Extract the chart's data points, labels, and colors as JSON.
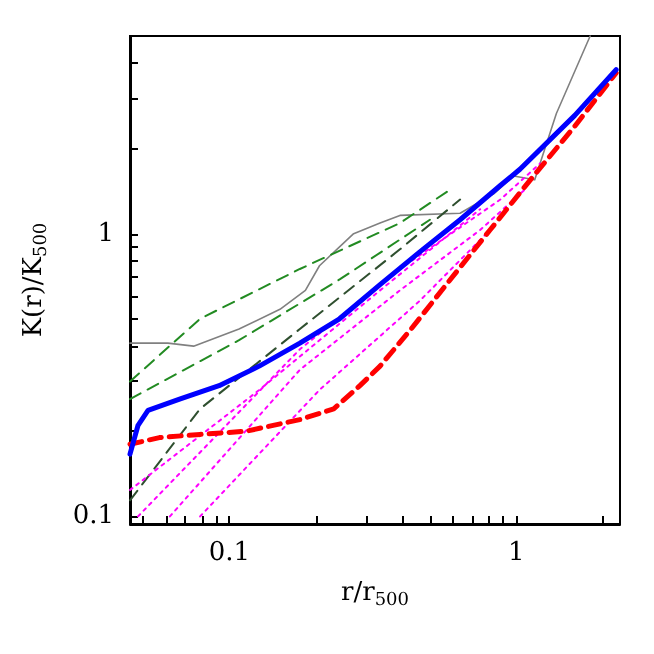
{
  "chart_data": {
    "type": "line",
    "xlabel": "r/r$_{500}$",
    "ylabel": "K(r)/K$_{500}$",
    "log": "xy",
    "grid": false,
    "marker": "none",
    "xlim": [
      0.045,
      2.3
    ],
    "ylim": [
      0.094,
      5
    ],
    "xticks": [
      {
        "value": 0.05,
        "label": null
      },
      {
        "value": 0.06,
        "label": null
      },
      {
        "value": 0.07,
        "label": null
      },
      {
        "value": 0.08,
        "label": null
      },
      {
        "value": 0.09,
        "label": null
      },
      0.1,
      {
        "value": 0.2,
        "label": null
      },
      {
        "value": 0.3,
        "label": null
      },
      {
        "value": 0.4,
        "label": null
      },
      {
        "value": 0.5,
        "label": null
      },
      {
        "value": 0.6,
        "label": null
      },
      {
        "value": 0.7,
        "label": null
      },
      {
        "value": 0.8,
        "label": null
      },
      {
        "value": 0.9,
        "label": null
      },
      1,
      {
        "value": 2,
        "label": null
      }
    ],
    "yticks": [
      0.1,
      {
        "value": 0.2,
        "label": null
      },
      {
        "value": 0.3,
        "label": null
      },
      {
        "value": 0.4,
        "label": null
      },
      {
        "value": 0.5,
        "label": null
      },
      {
        "value": 0.6,
        "label": null
      },
      {
        "value": 0.7,
        "label": null
      },
      {
        "value": 0.8,
        "label": null
      },
      {
        "value": 0.9,
        "label": null
      },
      1,
      {
        "value": 2,
        "label": null
      },
      {
        "value": 3,
        "label": null
      },
      {
        "value": 4,
        "label": null
      }
    ],
    "series": [
      {
        "color": "#808080",
        "line_style": "solid",
        "x": [
          0.045,
          0.061,
          0.075,
          0.108,
          0.15,
          0.184,
          0.206,
          0.271,
          0.335,
          0.393,
          0.637,
          0.84,
          0.98,
          1.16,
          1.38,
          1.81
        ],
        "values": [
          0.41,
          0.41,
          0.4,
          0.46,
          0.54,
          0.63,
          0.77,
          1.0,
          1.09,
          1.16,
          1.18,
          1.39,
          1.6,
          1.55,
          2.66,
          5.0
        ]
      },
      {
        "color": "#228b22",
        "line_style": "dashed",
        "x": [
          0.045,
          0.079,
          0.176,
          0.393,
          0.588
        ],
        "values": [
          0.3,
          0.5,
          0.75,
          1.09,
          1.43
        ]
      },
      {
        "color": "#228b22",
        "line_style": "dashed",
        "x": [
          0.045,
          0.108,
          0.243,
          0.5
        ],
        "values": [
          0.26,
          0.42,
          0.69,
          1.12
        ]
      },
      {
        "color": "#2f4f2f",
        "line_style": "dashed",
        "x": [
          0.045,
          0.079,
          0.176,
          0.393,
          0.637
        ],
        "values": [
          0.114,
          0.24,
          0.46,
          0.88,
          1.32
        ]
      },
      {
        "color": "#ff00ff",
        "line_style": "dotted",
        "x": [
          0.048,
          0.176,
          0.393,
          0.88,
          1.21
        ],
        "values": [
          0.1,
          0.39,
          0.75,
          1.32,
          1.77
        ]
      },
      {
        "color": "#ff00ff",
        "line_style": "dotted",
        "x": [
          0.062,
          0.176,
          0.393,
          0.748,
          1.07
        ],
        "values": [
          0.1,
          0.33,
          0.63,
          1.03,
          1.43
        ]
      },
      {
        "color": "#ff00ff",
        "line_style": "dotted",
        "x": [
          0.079,
          0.206,
          0.462,
          0.81
        ],
        "values": [
          0.1,
          0.28,
          0.58,
          1.03
        ]
      },
      {
        "color": "#ff00ff",
        "line_style": "dotted",
        "x": [
          0.045,
          0.127,
          0.335,
          0.748
        ],
        "values": [
          0.124,
          0.28,
          0.63,
          1.22
        ]
      },
      {
        "color": "#ff0000",
        "line_style": "dashed",
        "x": [
          0.045,
          0.057,
          0.079,
          0.114,
          0.176,
          0.231,
          0.285,
          0.335,
          0.43,
          0.57,
          0.81,
          1.12,
          1.6,
          2.23
        ],
        "values": [
          0.18,
          0.19,
          0.195,
          0.2,
          0.22,
          0.24,
          0.29,
          0.34,
          0.46,
          0.66,
          1.03,
          1.55,
          2.4,
          3.7
        ]
      },
      {
        "color": "#0000ff",
        "line_style": "solid",
        "x": [
          0.045,
          0.048,
          0.052,
          0.067,
          0.092,
          0.127,
          0.176,
          0.242,
          0.335,
          0.46,
          0.637,
          0.88,
          1.03,
          1.6,
          2.23
        ],
        "values": [
          0.166,
          0.21,
          0.237,
          0.26,
          0.29,
          0.34,
          0.41,
          0.5,
          0.66,
          0.86,
          1.12,
          1.48,
          1.69,
          2.62,
          3.8
        ]
      }
    ]
  }
}
